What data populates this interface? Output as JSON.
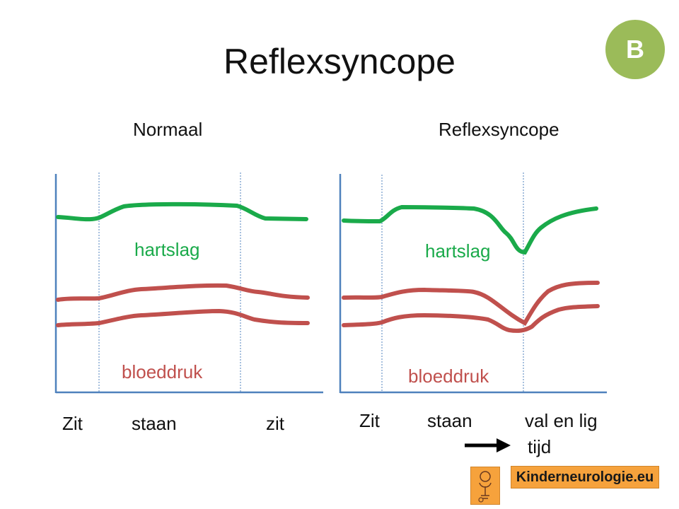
{
  "title": "Reflexsyncope",
  "badge": "B",
  "panels": [
    {
      "heading": "Normaal",
      "heart_label": "hartslag",
      "bp_label": "bloeddruk",
      "x_labels": [
        "Zit",
        "staan",
        "zit"
      ]
    },
    {
      "heading": "Reflexsyncope",
      "heart_label": "hartslag",
      "bp_label": "bloeddruk",
      "x_labels": [
        "Zit",
        "staan",
        "val en lig"
      ]
    }
  ],
  "time_label": "tijd",
  "site": "Kinderneurologie.eu",
  "colors": {
    "heart": "#1aaa4a",
    "bp": "#c0504d",
    "axis": "#4f81bd",
    "badge": "#9bbb59"
  }
}
